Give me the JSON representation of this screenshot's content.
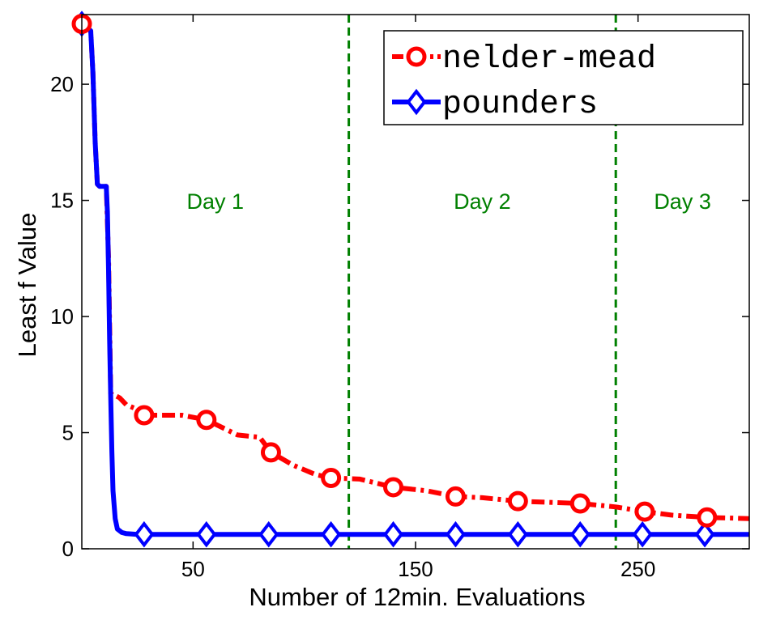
{
  "chart_data": {
    "type": "line",
    "xlabel": "Number of 12min. Evaluations",
    "ylabel": "Least f Value",
    "xlim": [
      0,
      300
    ],
    "ylim": [
      0,
      23
    ],
    "xticks": [
      50,
      150,
      250
    ],
    "yticks": [
      0,
      5,
      10,
      15,
      20
    ],
    "grid": false,
    "legend_position": "top-right",
    "vlines": [
      120,
      240
    ],
    "regions": [
      {
        "label": "Day 1",
        "x": 60
      },
      {
        "label": "Day 2",
        "x": 180
      },
      {
        "label": "Day 3",
        "x": 270
      }
    ],
    "series": [
      {
        "name": "nelder-mead",
        "color": "#ff0000",
        "line_style": "dash-dot",
        "marker": "circle",
        "x": [
          0,
          4,
          5,
          6,
          7,
          8,
          9,
          10,
          11,
          12,
          13,
          14,
          15,
          17,
          20,
          25,
          28,
          35,
          45,
          56,
          70,
          80,
          85,
          95,
          105,
          112,
          125,
          140,
          155,
          168,
          180,
          196,
          210,
          224,
          240,
          253,
          265,
          281,
          300
        ],
        "y": [
          22.6,
          22.3,
          20.5,
          17.5,
          15.7,
          15.6,
          15.6,
          15.6,
          15.6,
          12.5,
          6.7,
          6.6,
          6.6,
          6.5,
          6.2,
          6.0,
          5.75,
          5.75,
          5.75,
          5.55,
          4.9,
          4.8,
          4.15,
          3.6,
          3.2,
          3.05,
          3.0,
          2.65,
          2.5,
          2.25,
          2.2,
          2.05,
          2.0,
          1.95,
          1.8,
          1.6,
          1.45,
          1.35,
          1.3
        ],
        "marker_x": [
          0,
          28,
          56,
          85,
          112,
          140,
          168,
          196,
          224,
          253,
          281
        ]
      },
      {
        "name": "pounders",
        "color": "#0000ff",
        "line_style": "solid",
        "marker": "diamond",
        "x": [
          0,
          4,
          5,
          6,
          7,
          8,
          9,
          10,
          11,
          11.5,
          12,
          12.5,
          13,
          13.5,
          14,
          15,
          16,
          18,
          20,
          25,
          30,
          60,
          100,
          150,
          200,
          250,
          300
        ],
        "y": [
          22.6,
          22.3,
          20.5,
          17.5,
          15.7,
          15.6,
          15.6,
          15.6,
          15.6,
          14.5,
          12.0,
          9.0,
          6.5,
          4.2,
          2.5,
          1.3,
          0.85,
          0.7,
          0.65,
          0.62,
          0.62,
          0.62,
          0.62,
          0.62,
          0.62,
          0.62,
          0.62
        ],
        "marker_x": [
          0,
          28,
          56,
          84,
          112,
          140,
          168,
          196,
          224,
          252,
          280
        ]
      }
    ]
  }
}
